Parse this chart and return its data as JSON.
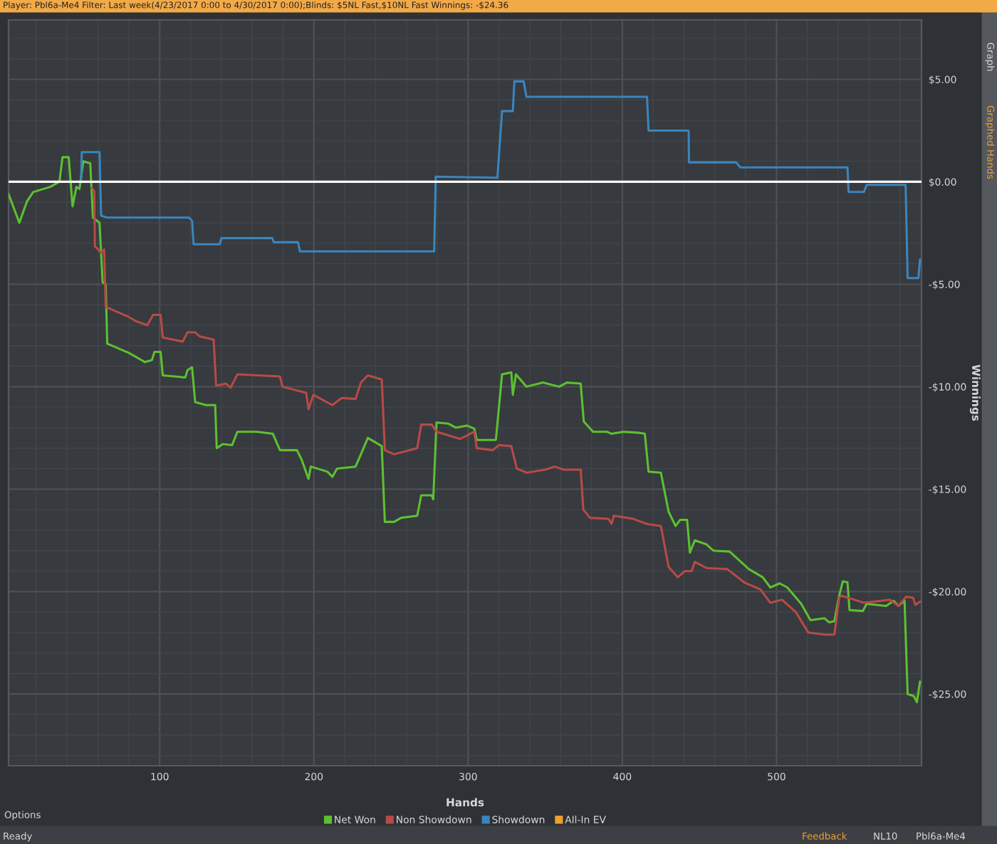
{
  "chart_data": {
    "type": "line",
    "title": "Player: Pbl6a-Me4 Filter: Last week(4/23/2017 0:00 to 4/30/2017 0:00);Blinds: $5NL Fast,$10NL Fast Winnings: -$24.36",
    "xlabel": "Hands",
    "ylabel": "Winnings",
    "xlim": [
      2,
      594
    ],
    "xticks": [
      100,
      200,
      300,
      400,
      500
    ],
    "ylim": [
      -28.5,
      7.9
    ],
    "yticks": [
      {
        "value": 5,
        "label": "$5.00"
      },
      {
        "value": 0,
        "label": "$0.00"
      },
      {
        "value": -5,
        "label": "-$5.00"
      },
      {
        "value": -10,
        "label": "-$10.00"
      },
      {
        "value": -15,
        "label": "-$15.00"
      },
      {
        "value": -20,
        "label": "-$20.00"
      },
      {
        "value": -25,
        "label": "-$25.00"
      }
    ],
    "grid": true,
    "legend": "bottom",
    "line_style": "solid",
    "marker": "none",
    "ref_lines": [
      {
        "axis": "y",
        "value": 0,
        "color": "#ffffff"
      }
    ],
    "annotations": [
      "Options",
      "Ready",
      "Feedback",
      "NL10",
      "Pbl6a-Me4",
      "Graph",
      "Graphed Hands"
    ],
    "series": [
      {
        "name": "Net Won",
        "color": "#5cc130",
        "x": [
          2,
          9,
          14,
          18,
          29,
          35,
          37,
          41,
          43.5,
          46,
          48,
          50.5,
          55,
          56.7,
          61,
          63,
          65,
          66,
          80,
          90.5,
          95,
          96.6,
          100.6,
          102,
          116.6,
          118,
          121,
          123,
          130,
          136,
          137,
          141,
          147,
          150.4,
          163,
          173.4,
          178,
          189,
          192,
          196.5,
          198,
          208.8,
          212,
          215,
          227,
          230.5,
          235,
          244,
          246,
          252,
          256.6,
          267,
          269.6,
          276.4,
          277.4,
          279.5,
          287,
          292,
          299.4,
          304,
          305.6,
          318,
          322,
          328,
          329,
          331,
          337.8,
          348.5,
          359,
          364,
          373,
          375,
          381,
          390,
          393,
          400.7,
          411,
          414.6,
          417,
          425,
          430,
          434.5,
          437.5,
          442,
          443.8,
          447,
          454.6,
          459,
          469.6,
          482,
          491,
          496,
          502,
          507,
          516,
          522,
          531,
          534,
          537.5,
          540.6,
          543,
          546,
          547.3,
          556,
          558.4,
          571,
          576,
          579,
          583,
          585,
          589,
          591,
          593
        ],
        "values": [
          -0.6,
          -2.0,
          -0.95,
          -0.5,
          -0.25,
          0,
          1.2,
          1.2,
          -1.2,
          -0.25,
          -0.35,
          1.0,
          0.9,
          -1.75,
          -2.0,
          -4.9,
          -5.0,
          -7.9,
          -8.35,
          -8.8,
          -8.7,
          -8.3,
          -8.3,
          -9.45,
          -9.55,
          -9.2,
          -9.05,
          -10.75,
          -10.9,
          -10.9,
          -13.0,
          -12.8,
          -12.85,
          -12.2,
          -12.2,
          -12.3,
          -13.1,
          -13.1,
          -13.55,
          -14.5,
          -13.9,
          -14.15,
          -14.4,
          -14.0,
          -13.9,
          -13.3,
          -12.5,
          -12.9,
          -16.6,
          -16.6,
          -16.4,
          -16.3,
          -15.3,
          -15.3,
          -15.5,
          -11.75,
          -11.8,
          -12.0,
          -11.9,
          -12.05,
          -12.6,
          -12.6,
          -9.4,
          -9.3,
          -10.4,
          -9.4,
          -10.0,
          -9.8,
          -10.0,
          -9.8,
          -9.85,
          -11.7,
          -12.2,
          -12.2,
          -12.3,
          -12.2,
          -12.25,
          -12.3,
          -14.15,
          -14.2,
          -16.1,
          -16.8,
          -16.5,
          -16.5,
          -18.1,
          -17.5,
          -17.7,
          -18.0,
          -18.05,
          -18.9,
          -19.3,
          -19.8,
          -19.6,
          -19.8,
          -20.6,
          -21.4,
          -21.3,
          -21.5,
          -21.45,
          -20.2,
          -19.5,
          -19.55,
          -20.9,
          -20.95,
          -20.6,
          -20.7,
          -20.45,
          -20.7,
          -20.45,
          -25.0,
          -25.1,
          -25.4,
          -24.4
        ]
      },
      {
        "name": "Non Showdown",
        "color": "#b84a47",
        "x": [
          56,
          57.6,
          58,
          62,
          64,
          65,
          80,
          84.5,
          92,
          95.7,
          100.6,
          102,
          115,
          118,
          123,
          126,
          135,
          136.6,
          143,
          146,
          150.4,
          178,
          179.6,
          195,
          196.5,
          199.6,
          212,
          218,
          227,
          230.5,
          235,
          244,
          246,
          252,
          267,
          269.6,
          276.4,
          279.5,
          294.8,
          304,
          305.6,
          316,
          320,
          328,
          331.6,
          338,
          350,
          356,
          362,
          373,
          374.7,
          379,
          391,
          393,
          394.5,
          407,
          416,
          425,
          430,
          436,
          440.6,
          445,
          447,
          454.6,
          468,
          479,
          489.6,
          496,
          503.6,
          512.5,
          520.6,
          531,
          537.5,
          540.6,
          542,
          556.8,
          573.6,
          579,
          584,
          588.6,
          590,
          593
        ],
        "values": [
          -0.3,
          -0.45,
          -3.15,
          -3.45,
          -3.3,
          -6.1,
          -6.6,
          -6.8,
          -7.0,
          -6.5,
          -6.5,
          -7.6,
          -7.8,
          -7.35,
          -7.35,
          -7.55,
          -7.7,
          -9.95,
          -9.85,
          -10.05,
          -9.4,
          -9.5,
          -10.0,
          -10.3,
          -11.1,
          -10.4,
          -10.9,
          -10.55,
          -10.6,
          -9.8,
          -9.45,
          -9.65,
          -13.1,
          -13.3,
          -13.0,
          -11.85,
          -11.85,
          -12.2,
          -12.55,
          -12.2,
          -13.0,
          -13.1,
          -12.85,
          -12.9,
          -14.0,
          -14.2,
          -14.05,
          -13.9,
          -14.05,
          -14.05,
          -16.0,
          -16.4,
          -16.45,
          -16.7,
          -16.3,
          -16.45,
          -16.7,
          -16.8,
          -18.8,
          -19.3,
          -19.0,
          -19.0,
          -18.55,
          -18.85,
          -18.9,
          -19.55,
          -19.9,
          -20.55,
          -20.4,
          -21.0,
          -22.0,
          -22.1,
          -22.1,
          -20.3,
          -20.2,
          -20.55,
          -20.4,
          -20.7,
          -20.25,
          -20.3,
          -20.65,
          -20.5
        ]
      },
      {
        "name": "Showdown",
        "color": "#3a85bf",
        "x": [
          49,
          49.5,
          61,
          62,
          66,
          119,
          121,
          122,
          139,
          140,
          173,
          174,
          189.7,
          191,
          278,
          279,
          319,
          322,
          329,
          330,
          336,
          337.8,
          416,
          417,
          443,
          443.2,
          473.8,
          476.5,
          546,
          546.7,
          556.6,
          558.5,
          583.7,
          585,
          592,
          593
        ],
        "values": [
          0,
          1.45,
          1.45,
          -1.65,
          -1.75,
          -1.75,
          -1.9,
          -3.05,
          -3.05,
          -2.75,
          -2.75,
          -2.95,
          -2.95,
          -3.4,
          -3.4,
          0.25,
          0.2,
          3.45,
          3.45,
          4.9,
          4.9,
          4.15,
          4.15,
          2.5,
          2.5,
          0.95,
          0.95,
          0.7,
          0.7,
          -0.5,
          -0.5,
          -0.15,
          -0.15,
          -4.7,
          -4.7,
          -3.8
        ]
      },
      {
        "name": "All-In EV",
        "color": "#f0a030"
      }
    ]
  }
}
